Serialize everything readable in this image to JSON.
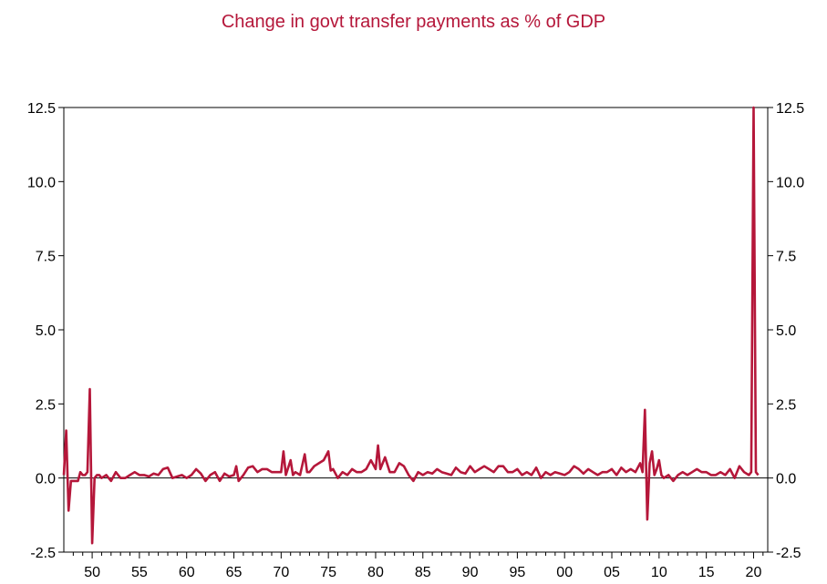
{
  "chart_data": {
    "type": "line",
    "title": "Change in govt transfer payments as % of GDP",
    "xlabel": "",
    "ylabel": "",
    "ylim": [
      -2.5,
      12.5
    ],
    "xlim": [
      1947,
      2021.5
    ],
    "yticks": [
      -2.5,
      0.0,
      2.5,
      5.0,
      7.5,
      10.0,
      12.5
    ],
    "yticklabels": [
      "-2.5",
      "0.0",
      "2.5",
      "5.0",
      "7.5",
      "10.0",
      "12.5"
    ],
    "xticks": [
      1950,
      1955,
      1960,
      1965,
      1970,
      1975,
      1980,
      1985,
      1990,
      1995,
      2000,
      2005,
      2010,
      2015,
      2020
    ],
    "xticklabels": [
      "50",
      "55",
      "60",
      "65",
      "70",
      "75",
      "80",
      "85",
      "90",
      "95",
      "00",
      "05",
      "10",
      "15",
      "20"
    ],
    "zero_line": true,
    "grid": false,
    "right_axis": true,
    "series": [
      {
        "color": "#B5173A",
        "x": [
          1947.0,
          1947.25,
          1947.5,
          1947.75,
          1948.0,
          1948.25,
          1948.5,
          1948.75,
          1949.0,
          1949.25,
          1949.5,
          1949.75,
          1950.0,
          1950.25,
          1950.5,
          1950.75,
          1951.0,
          1951.5,
          1952.0,
          1952.5,
          1953.0,
          1953.5,
          1954.0,
          1954.5,
          1955.0,
          1955.5,
          1956.0,
          1956.5,
          1957.0,
          1957.5,
          1958.0,
          1958.5,
          1959.0,
          1959.5,
          1960.0,
          1960.5,
          1961.0,
          1961.5,
          1962.0,
          1962.5,
          1963.0,
          1963.5,
          1964.0,
          1964.5,
          1965.0,
          1965.25,
          1965.5,
          1966.0,
          1966.5,
          1967.0,
          1967.5,
          1968.0,
          1968.5,
          1969.0,
          1969.5,
          1970.0,
          1970.25,
          1970.5,
          1971.0,
          1971.25,
          1971.5,
          1972.0,
          1972.5,
          1972.75,
          1973.0,
          1973.5,
          1974.0,
          1974.5,
          1975.0,
          1975.25,
          1975.5,
          1976.0,
          1976.5,
          1977.0,
          1977.5,
          1978.0,
          1978.5,
          1979.0,
          1979.5,
          1980.0,
          1980.25,
          1980.5,
          1981.0,
          1981.5,
          1982.0,
          1982.5,
          1983.0,
          1983.5,
          1984.0,
          1984.5,
          1985.0,
          1985.5,
          1986.0,
          1986.5,
          1987.0,
          1987.5,
          1988.0,
          1988.5,
          1989.0,
          1989.5,
          1990.0,
          1990.5,
          1991.0,
          1991.5,
          1992.0,
          1992.5,
          1993.0,
          1993.5,
          1994.0,
          1994.5,
          1995.0,
          1995.5,
          1996.0,
          1996.5,
          1997.0,
          1997.5,
          1998.0,
          1998.5,
          1999.0,
          1999.5,
          2000.0,
          2000.5,
          2001.0,
          2001.5,
          2002.0,
          2002.5,
          2003.0,
          2003.5,
          2004.0,
          2004.5,
          2005.0,
          2005.5,
          2006.0,
          2006.5,
          2007.0,
          2007.5,
          2008.0,
          2008.25,
          2008.5,
          2008.75,
          2009.0,
          2009.25,
          2009.5,
          2009.75,
          2010.0,
          2010.25,
          2010.5,
          2011.0,
          2011.5,
          2012.0,
          2012.5,
          2013.0,
          2013.5,
          2014.0,
          2014.5,
          2015.0,
          2015.5,
          2016.0,
          2016.5,
          2017.0,
          2017.5,
          2018.0,
          2018.5,
          2019.0,
          2019.5,
          2019.75,
          2020.0,
          2020.25,
          2020.5
        ],
        "y": [
          0.1,
          1.6,
          -1.1,
          -0.1,
          -0.1,
          -0.1,
          -0.1,
          0.2,
          0.1,
          0.1,
          0.2,
          3.0,
          -2.2,
          0.0,
          0.1,
          0.1,
          0.0,
          0.1,
          -0.1,
          0.2,
          0.0,
          0.0,
          0.1,
          0.2,
          0.1,
          0.1,
          0.05,
          0.15,
          0.1,
          0.3,
          0.35,
          0.0,
          0.05,
          0.1,
          0.0,
          0.1,
          0.3,
          0.15,
          -0.1,
          0.1,
          0.2,
          -0.1,
          0.15,
          0.05,
          0.1,
          0.4,
          -0.1,
          0.1,
          0.35,
          0.4,
          0.2,
          0.3,
          0.3,
          0.2,
          0.2,
          0.2,
          0.9,
          0.1,
          0.6,
          0.1,
          0.2,
          0.1,
          0.8,
          0.2,
          0.2,
          0.4,
          0.5,
          0.6,
          0.9,
          0.25,
          0.3,
          0.0,
          0.2,
          0.1,
          0.3,
          0.2,
          0.2,
          0.3,
          0.6,
          0.3,
          1.1,
          0.3,
          0.7,
          0.2,
          0.2,
          0.5,
          0.4,
          0.1,
          -0.1,
          0.2,
          0.1,
          0.2,
          0.15,
          0.3,
          0.2,
          0.15,
          0.1,
          0.35,
          0.2,
          0.15,
          0.4,
          0.2,
          0.3,
          0.4,
          0.3,
          0.2,
          0.4,
          0.4,
          0.2,
          0.2,
          0.3,
          0.1,
          0.2,
          0.1,
          0.35,
          0.0,
          0.2,
          0.1,
          0.2,
          0.15,
          0.1,
          0.2,
          0.4,
          0.3,
          0.15,
          0.3,
          0.2,
          0.1,
          0.2,
          0.2,
          0.3,
          0.1,
          0.35,
          0.2,
          0.3,
          0.2,
          0.5,
          0.2,
          2.3,
          -1.4,
          0.5,
          0.9,
          0.1,
          0.3,
          0.6,
          0.1,
          0.0,
          0.1,
          -0.1,
          0.1,
          0.2,
          0.1,
          0.2,
          0.3,
          0.2,
          0.2,
          0.1,
          0.1,
          0.2,
          0.1,
          0.3,
          0.0,
          0.4,
          0.2,
          0.1,
          0.2,
          12.5,
          0.2,
          0.1
        ]
      }
    ]
  }
}
